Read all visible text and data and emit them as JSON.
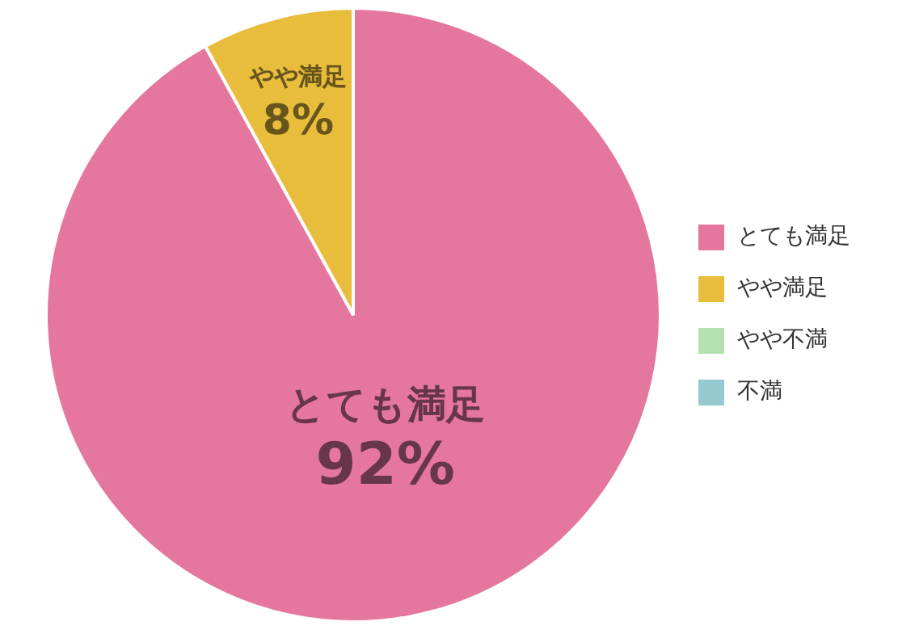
{
  "chart_data": {
    "type": "pie",
    "categories": [
      "とても満足",
      "やや満足",
      "やや不満",
      "不満"
    ],
    "values": [
      92,
      8,
      0,
      0
    ],
    "colors": [
      "#e5779f",
      "#e8bd3c",
      "#b5e0b0",
      "#96c8d2"
    ],
    "value_labels": [
      "92%",
      "8%",
      null,
      null
    ],
    "legend": "right"
  }
}
